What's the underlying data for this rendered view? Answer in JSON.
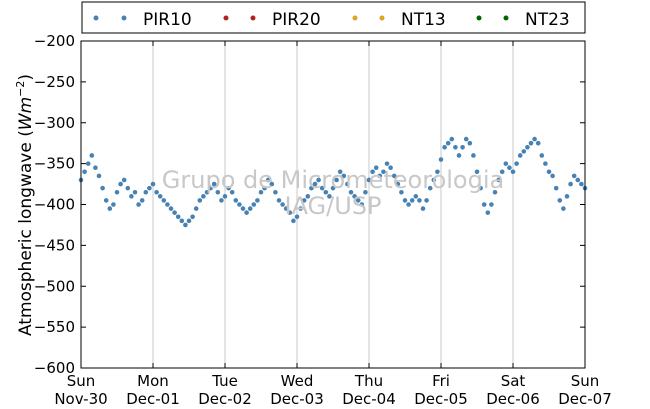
{
  "chart_data": {
    "type": "scatter",
    "ylabel_text": "Atmospheric longwave (",
    "ylabel_unit": "Wm",
    "ylabel_exp": "−2",
    "ylabel_close": ")",
    "ylim": [
      -600,
      -200
    ],
    "yticks": [
      -200,
      -250,
      -300,
      -350,
      -400,
      -450,
      -500,
      -550,
      -600
    ],
    "ytick_labels": [
      "−200",
      "−250",
      "−300",
      "−350",
      "−400",
      "−450",
      "−500",
      "−550",
      "−600"
    ],
    "xlim": [
      "2014-11-30",
      "2014-12-07"
    ],
    "xticks": [
      {
        "day": 0,
        "label1": "Sun",
        "label2": "Nov-30"
      },
      {
        "day": 1,
        "label1": "Mon",
        "label2": "Dec-01"
      },
      {
        "day": 2,
        "label1": "Tue",
        "label2": "Dec-02"
      },
      {
        "day": 3,
        "label1": "Wed",
        "label2": "Dec-03"
      },
      {
        "day": 4,
        "label1": "Thu",
        "label2": "Dec-04"
      },
      {
        "day": 5,
        "label1": "Fri",
        "label2": "Dec-05"
      },
      {
        "day": 6,
        "label1": "Sat",
        "label2": "Dec-06"
      },
      {
        "day": 7,
        "label1": "Sun",
        "label2": "Dec-07"
      }
    ],
    "grid": "vertical",
    "legend_position": "top",
    "watermark": [
      "Grupo de Micrometeorologia",
      "IAG/USP"
    ],
    "series": [
      {
        "name": "PIR10",
        "color": "#4682b4",
        "x": [
          0.0,
          0.05,
          0.1,
          0.15,
          0.2,
          0.25,
          0.3,
          0.35,
          0.4,
          0.45,
          0.5,
          0.55,
          0.6,
          0.65,
          0.7,
          0.75,
          0.8,
          0.85,
          0.9,
          0.95,
          1.0,
          1.05,
          1.1,
          1.15,
          1.2,
          1.25,
          1.3,
          1.35,
          1.4,
          1.45,
          1.5,
          1.55,
          1.6,
          1.65,
          1.7,
          1.75,
          1.8,
          1.85,
          1.9,
          1.95,
          2.0,
          2.05,
          2.1,
          2.15,
          2.2,
          2.25,
          2.3,
          2.35,
          2.4,
          2.45,
          2.5,
          2.55,
          2.6,
          2.65,
          2.7,
          2.75,
          2.8,
          2.85,
          2.9,
          2.95,
          3.0,
          3.05,
          3.1,
          3.15,
          3.2,
          3.25,
          3.3,
          3.35,
          3.4,
          3.45,
          3.5,
          3.55,
          3.6,
          3.65,
          3.7,
          3.75,
          3.8,
          3.85,
          3.9,
          3.95,
          4.0,
          4.05,
          4.1,
          4.15,
          4.2,
          4.25,
          4.3,
          4.35,
          4.4,
          4.45,
          4.5,
          4.55,
          4.6,
          4.65,
          4.7,
          4.75,
          4.8,
          4.85,
          4.9,
          4.95,
          5.0,
          5.05,
          5.1,
          5.15,
          5.2,
          5.25,
          5.3,
          5.35,
          5.4,
          5.45,
          5.5,
          5.55,
          5.6,
          5.65,
          5.7,
          5.75,
          5.8,
          5.85,
          5.9,
          5.95,
          6.0,
          6.05,
          6.1,
          6.15,
          6.2,
          6.25,
          6.3,
          6.35,
          6.4,
          6.45,
          6.5,
          6.55,
          6.6,
          6.65,
          6.7,
          6.75,
          6.8,
          6.85,
          6.9,
          6.95,
          7.0
        ],
        "y": [
          -370,
          -360,
          -350,
          -340,
          -355,
          -365,
          -380,
          -395,
          -405,
          -400,
          -385,
          -375,
          -370,
          -380,
          -390,
          -385,
          -400,
          -395,
          -385,
          -380,
          -375,
          -385,
          -390,
          -395,
          -400,
          -405,
          -410,
          -415,
          -420,
          -425,
          -420,
          -415,
          -405,
          -395,
          -390,
          -385,
          -380,
          -375,
          -385,
          -395,
          -390,
          -380,
          -385,
          -395,
          -400,
          -405,
          -410,
          -405,
          -400,
          -395,
          -385,
          -380,
          -370,
          -375,
          -385,
          -395,
          -400,
          -405,
          -410,
          -420,
          -415,
          -405,
          -395,
          -390,
          -380,
          -375,
          -370,
          -380,
          -385,
          -390,
          -380,
          -370,
          -360,
          -365,
          -375,
          -385,
          -390,
          -395,
          -400,
          -385,
          -370,
          -360,
          -355,
          -365,
          -360,
          -350,
          -355,
          -365,
          -375,
          -385,
          -395,
          -400,
          -395,
          -390,
          -395,
          -405,
          -395,
          -380,
          -370,
          -360,
          -345,
          -330,
          -325,
          -320,
          -330,
          -340,
          -330,
          -320,
          -325,
          -340,
          -360,
          -380,
          -400,
          -410,
          -400,
          -385,
          -370,
          -360,
          -350,
          -355,
          -360,
          -350,
          -340,
          -335,
          -330,
          -325,
          -320,
          -325,
          -340,
          -350,
          -360,
          -365,
          -380,
          -395,
          -405,
          -390,
          -375,
          -365,
          -370,
          -375,
          -380
        ]
      },
      {
        "name": "PIR20",
        "color": "#b22222",
        "x": [],
        "y": []
      },
      {
        "name": "NT13",
        "color": "#daa520",
        "x": [],
        "y": []
      },
      {
        "name": "NT23",
        "color": "#006400",
        "x": [],
        "y": []
      }
    ]
  }
}
